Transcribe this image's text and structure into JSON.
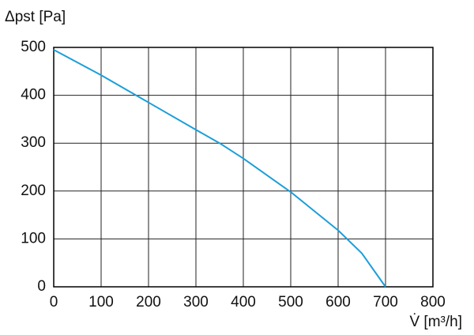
{
  "chart_data": {
    "type": "line",
    "ylabel": "Δpst [Pa]",
    "xlabel": "V̇ [m³/h]",
    "x": [
      0,
      100,
      200,
      300,
      350,
      400,
      500,
      600,
      650,
      700
    ],
    "values": [
      495,
      442,
      385,
      328,
      300,
      268,
      198,
      118,
      70,
      0
    ],
    "color": "#1b9ed9",
    "xlim": [
      0,
      800
    ],
    "xticks": [
      0,
      100,
      200,
      300,
      400,
      500,
      600,
      700,
      800
    ],
    "ylim": [
      0,
      500
    ],
    "yticks": [
      0,
      100,
      200,
      300,
      400,
      500
    ],
    "grid": true
  }
}
